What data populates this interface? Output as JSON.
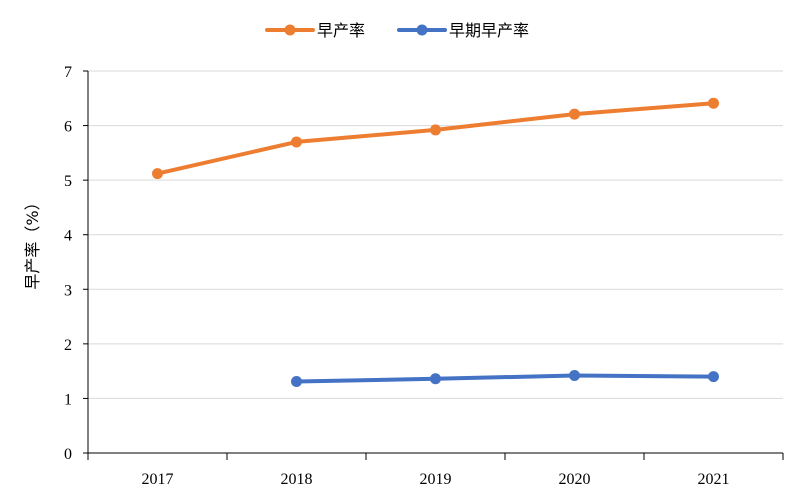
{
  "chart_data": {
    "type": "line",
    "categories": [
      "2017",
      "2018",
      "2019",
      "2020",
      "2021"
    ],
    "series": [
      {
        "name": "早产率",
        "color": "#ED7D31",
        "values": [
          5.12,
          5.7,
          5.92,
          6.21,
          6.41
        ]
      },
      {
        "name": "早期早产率",
        "color": "#4472C4",
        "values": [
          null,
          1.31,
          1.36,
          1.42,
          1.4
        ]
      }
    ],
    "ylabel": "早产率（%）",
    "xlabel": "",
    "ylim": [
      0,
      7
    ],
    "yticks": [
      0,
      1,
      2,
      3,
      4,
      5,
      6,
      7
    ],
    "grid": true,
    "legend_position": "top-center"
  }
}
